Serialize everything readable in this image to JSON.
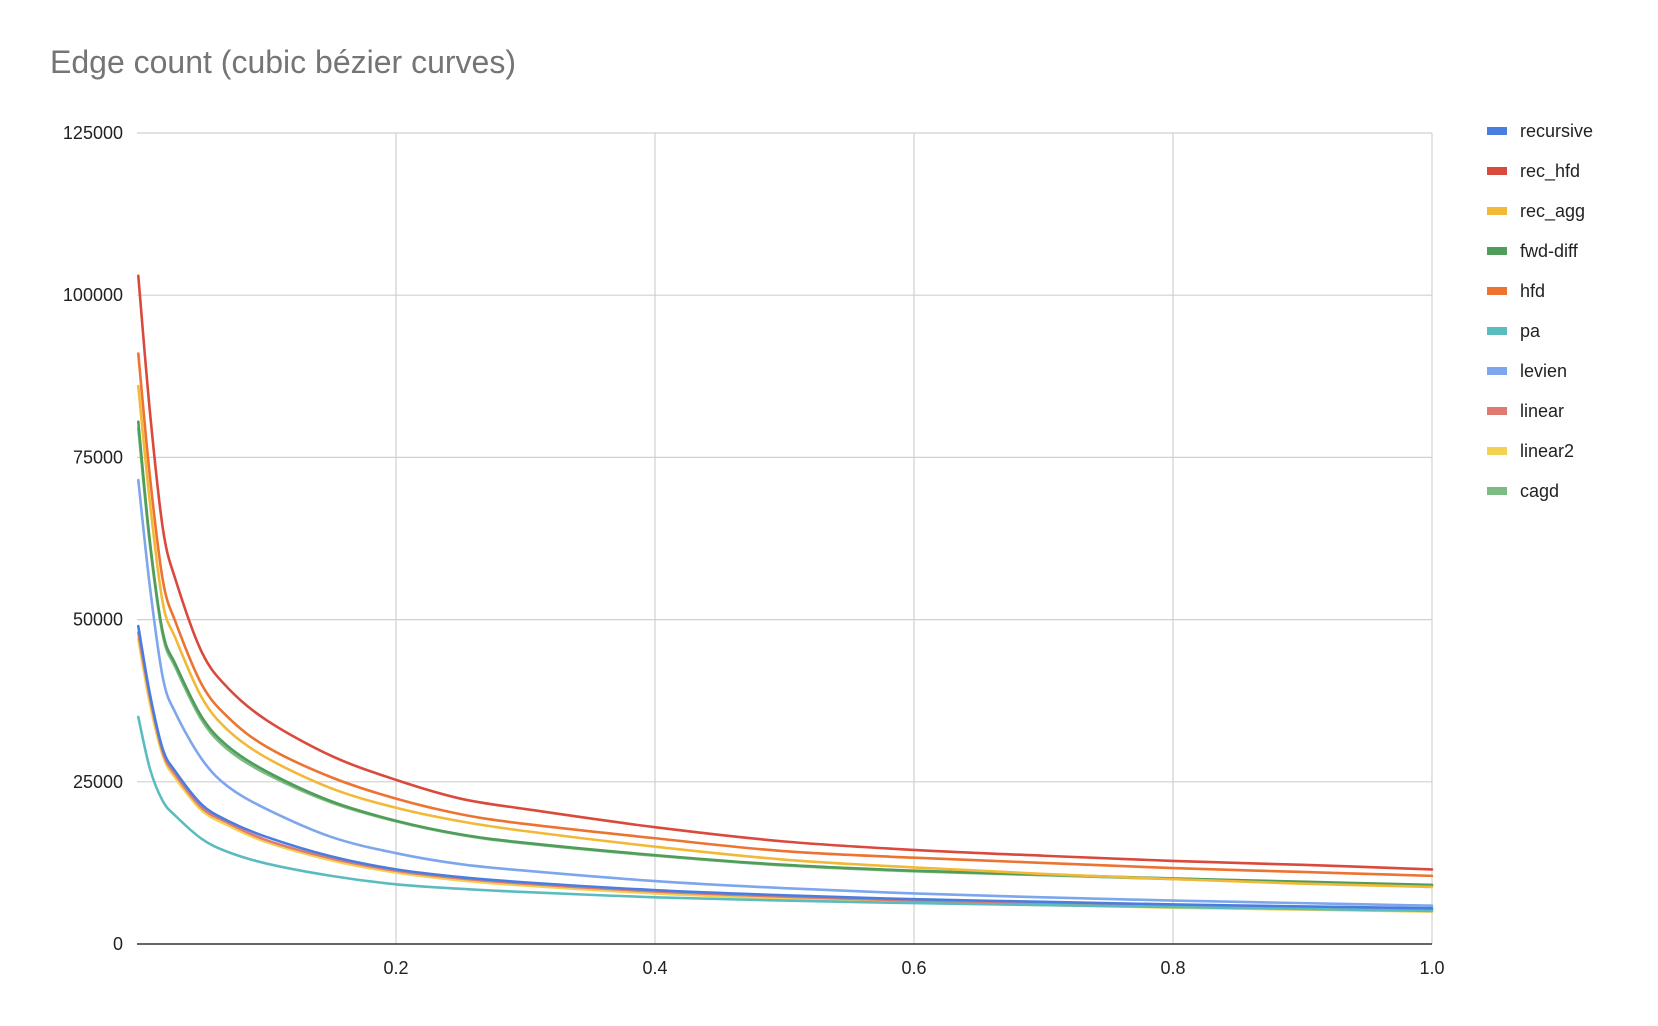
{
  "chart_data": {
    "type": "line",
    "title": "Edge count (cubic bézier curves)",
    "xlabel": "",
    "ylabel": "",
    "xlim": [
      0,
      1.0
    ],
    "ylim": [
      0,
      125000
    ],
    "x_ticks": [
      0.2,
      0.4,
      0.6,
      0.8,
      1.0
    ],
    "x_tick_labels": [
      "0.2",
      "0.4",
      "0.6",
      "0.8",
      "1.0"
    ],
    "y_ticks": [
      0,
      25000,
      50000,
      75000,
      100000,
      125000
    ],
    "y_tick_labels": [
      "0",
      "25000",
      "50000",
      "75000",
      "100000",
      "125000"
    ],
    "grid": true,
    "legend_position": "right",
    "x": [
      0.001,
      0.01,
      0.02,
      0.03,
      0.05,
      0.07,
      0.1,
      0.15,
      0.2,
      0.25,
      0.3,
      0.4,
      0.5,
      0.6,
      0.7,
      0.8,
      0.9,
      1.0
    ],
    "series": [
      {
        "name": "recursive",
        "color": "#4a7de0",
        "values": [
          49000,
          38500,
          30000,
          26500,
          21500,
          19000,
          16500,
          13500,
          11500,
          10300,
          9500,
          8300,
          7500,
          6900,
          6500,
          6100,
          5800,
          5500
        ]
      },
      {
        "name": "rec_hfd",
        "color": "#d94a3d",
        "values": [
          103000,
          82000,
          64000,
          56000,
          45000,
          39500,
          34500,
          29000,
          25300,
          22400,
          20800,
          18000,
          15800,
          14500,
          13600,
          12800,
          12200,
          11500
        ]
      },
      {
        "name": "rec_agg",
        "color": "#f2b938",
        "values": [
          86000,
          68000,
          52500,
          47000,
          38000,
          33000,
          28700,
          24000,
          21000,
          18900,
          17400,
          15000,
          13000,
          11800,
          10800,
          10000,
          9300,
          8800
        ]
      },
      {
        "name": "fwd-diff",
        "color": "#4f9d59",
        "values": [
          80500,
          62000,
          48000,
          43000,
          35000,
          30500,
          26600,
          22000,
          19000,
          16900,
          15600,
          13700,
          12200,
          11300,
          10700,
          10100,
          9600,
          9100
        ]
      },
      {
        "name": "hfd",
        "color": "#ec7330",
        "values": [
          91000,
          72000,
          56000,
          49500,
          40000,
          35000,
          30400,
          25700,
          22400,
          20000,
          18500,
          16300,
          14300,
          13300,
          12500,
          11700,
          11100,
          10500
        ]
      },
      {
        "name": "pa",
        "color": "#5bbcc0",
        "values": [
          35000,
          27000,
          22000,
          19700,
          16200,
          14200,
          12400,
          10500,
          9200,
          8500,
          8000,
          7200,
          6700,
          6300,
          6000,
          5700,
          5400,
          5100
        ]
      },
      {
        "name": "levien",
        "color": "#7da6ec",
        "values": [
          71500,
          55000,
          41000,
          35500,
          28500,
          24300,
          20800,
          16500,
          14000,
          12300,
          11300,
          9700,
          8600,
          7800,
          7200,
          6700,
          6300,
          5900
        ]
      },
      {
        "name": "linear",
        "color": "#e07a70",
        "values": [
          48000,
          38000,
          29500,
          26000,
          21000,
          18700,
          16000,
          13200,
          11300,
          10100,
          9300,
          8100,
          7300,
          6700,
          6300,
          5900,
          5600,
          5300
        ]
      },
      {
        "name": "linear2",
        "color": "#f5d153",
        "values": [
          47000,
          37000,
          29000,
          25500,
          20600,
          18300,
          15700,
          12900,
          11000,
          9800,
          9000,
          7800,
          7000,
          6400,
          6000,
          5600,
          5300,
          5000
        ]
      },
      {
        "name": "cagd",
        "color": "#7cbb83",
        "values": [
          79500,
          61500,
          47500,
          42500,
          34500,
          30000,
          26200,
          21800,
          18900,
          16800,
          15500,
          13600,
          12100,
          11200,
          10600,
          10000,
          9500,
          9000
        ]
      }
    ]
  }
}
